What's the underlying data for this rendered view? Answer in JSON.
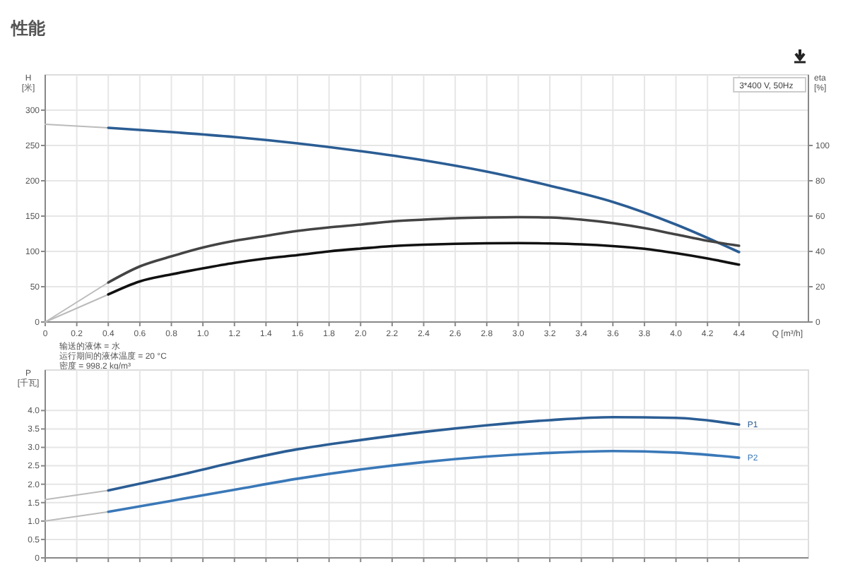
{
  "chart_data": [
    {
      "type": "line",
      "title": "性能",
      "subtitle": "3*400 V, 50Hz",
      "xlabel": "Q [m³/h]",
      "ylabel": "H [米]",
      "y2label": "eta [%]",
      "xlim": [
        0,
        4.84
      ],
      "xticks": [
        0,
        0.2,
        0.4,
        0.6,
        0.8,
        {
          "value": 1,
          "label": "1.0"
        },
        1.2,
        1.4,
        1.6,
        1.8,
        {
          "value": 2,
          "label": "2.0"
        },
        2.2,
        2.4,
        2.6,
        2.8,
        {
          "value": 3,
          "label": "3.0"
        },
        3.2,
        3.4,
        3.6,
        3.8,
        {
          "value": 4,
          "label": "4.0"
        },
        4.2,
        4.4
      ],
      "ylim": [
        0,
        350
      ],
      "yticks": [
        0,
        50,
        100,
        150,
        200,
        250,
        300
      ],
      "y2lim": [
        0,
        140
      ],
      "y2ticks": [
        0,
        20,
        40,
        60,
        80,
        100
      ],
      "grid": true,
      "annotations": [
        "输送的液体 = 水",
        "运行期间的液体温度 = 20 °C",
        "密度 = 998.2 kg/m³"
      ],
      "series": [
        {
          "color": "#bbbbbb",
          "x": [
            0,
            0.4
          ],
          "values": [
            280,
            275
          ]
        },
        {
          "color": "#2b5d94",
          "x": [
            0.4,
            0.8,
            1.2,
            1.6,
            2.0,
            2.4,
            2.8,
            3.2,
            3.6,
            4.0,
            4.4
          ],
          "values": [
            275,
            269,
            262,
            253,
            242,
            229,
            213,
            193,
            170,
            138,
            99
          ]
        },
        {
          "color": "#bbbbbb",
          "axis": "y2",
          "x": [
            0,
            0.4
          ],
          "values": [
            0,
            22.4
          ]
        },
        {
          "color": "#444444",
          "axis": "y2",
          "x": [
            0.4,
            0.6,
            0.8,
            1.0,
            1.2,
            1.4,
            1.6,
            1.8,
            2.0,
            2.2,
            2.4,
            2.6,
            2.8,
            3.0,
            3.2,
            3.4,
            3.6,
            3.8,
            4.0,
            4.2,
            4.4
          ],
          "values": [
            22.4,
            31.5,
            37.2,
            42.2,
            46,
            48.8,
            51.6,
            53.6,
            55.2,
            57,
            58,
            58.8,
            59.2,
            59.4,
            59.2,
            58,
            56,
            53.2,
            49.6,
            46,
            43.2
          ]
        },
        {
          "color": "#bbbbbb",
          "axis": "y2",
          "x": [
            0,
            0.4
          ],
          "values": [
            0,
            15.6
          ]
        },
        {
          "color": "#111111",
          "axis": "y2",
          "x": [
            0.4,
            0.6,
            0.8,
            1.0,
            1.2,
            1.4,
            1.6,
            1.8,
            2.0,
            2.2,
            2.4,
            2.6,
            2.8,
            3.0,
            3.2,
            3.4,
            3.6,
            3.8,
            4.0,
            4.2,
            4.4
          ],
          "values": [
            15.6,
            23,
            27,
            30.4,
            33.5,
            36,
            37.9,
            40,
            41.6,
            43,
            43.8,
            44.3,
            44.6,
            44.7,
            44.5,
            44,
            43,
            41.5,
            39,
            36,
            32.5
          ]
        }
      ]
    },
    {
      "type": "line",
      "ylabel": "P [千瓦]",
      "xlim": [
        0,
        4.84
      ],
      "xticks": [
        0,
        0.2,
        0.4,
        0.6,
        0.8,
        1.0,
        1.2,
        1.4,
        1.6,
        1.8,
        2.0,
        2.2,
        2.4,
        2.6,
        2.8,
        3.0,
        3.2,
        3.4,
        3.6,
        3.8,
        4.0,
        4.2,
        4.4
      ],
      "ylim": [
        0,
        5.1
      ],
      "yticks": [
        0,
        0.5,
        {
          "value": 1,
          "label": "1.0"
        },
        1.5,
        {
          "value": 2,
          "label": "2.0"
        },
        2.5,
        {
          "value": 3,
          "label": "3.0"
        },
        3.5,
        {
          "value": 4,
          "label": "4.0"
        }
      ],
      "tick_labels": "y",
      "grid": true,
      "series": [
        {
          "color": "#bbbbbb",
          "x": [
            0,
            0.4
          ],
          "values": [
            1.58,
            1.83
          ]
        },
        {
          "name": "P1",
          "color": "#2b5d94",
          "x": [
            0.4,
            0.8,
            1.2,
            1.6,
            2.0,
            2.4,
            2.8,
            3.2,
            3.6,
            4.0,
            4.4
          ],
          "values": [
            1.83,
            2.2,
            2.6,
            2.95,
            3.2,
            3.42,
            3.6,
            3.74,
            3.82,
            3.8,
            3.62
          ]
        },
        {
          "color": "#bbbbbb",
          "x": [
            0,
            0.4
          ],
          "values": [
            1.0,
            1.25
          ]
        },
        {
          "name": "P2",
          "color": "#3a78b8",
          "x": [
            0.4,
            0.8,
            1.2,
            1.6,
            2.0,
            2.4,
            2.8,
            3.2,
            3.6,
            4.0,
            4.4
          ],
          "values": [
            1.25,
            1.55,
            1.85,
            2.15,
            2.4,
            2.6,
            2.75,
            2.85,
            2.9,
            2.86,
            2.72
          ]
        }
      ]
    }
  ]
}
